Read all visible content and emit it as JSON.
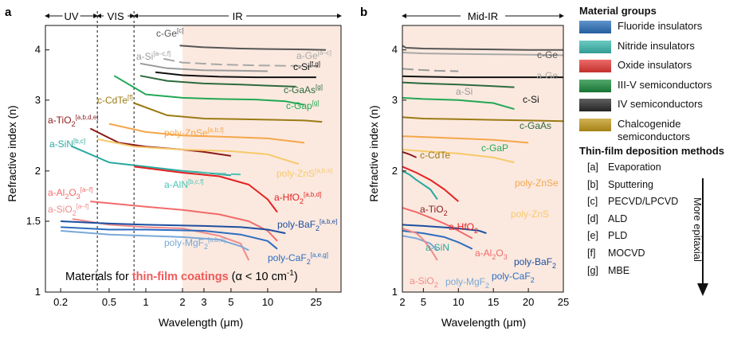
{
  "panel_a": {
    "label": "a",
    "regions": [
      "UV",
      "VIS",
      "IR"
    ],
    "annotation_prefix": "Materials for ",
    "annotation_highlight": "thin-film coatings",
    "annotation_suffix": " (α < 10 cm",
    "annotation_sup": "-1",
    "annotation_end": ")"
  },
  "panel_b": {
    "label": "b",
    "region": "Mid-IR"
  },
  "legend": {
    "groups_title": "Material groups",
    "groups": [
      {
        "label": "Fluoride insulators",
        "color": "#2a6fba"
      },
      {
        "label": "Nitride insulators",
        "color": "#3ab8ad"
      },
      {
        "label": "Oxide insulators",
        "color": "#e53935"
      },
      {
        "label": "III-V semiconductors",
        "color": "#1b8a3c"
      },
      {
        "label": "IV semiconductors",
        "color": "#2b2b2b"
      },
      {
        "label": "Chalcogenide semiconductors",
        "color": "#c2991c"
      }
    ],
    "methods_title": "Thin-film deposition methods",
    "methods": [
      {
        "tag": "[a]",
        "label": "Evaporation"
      },
      {
        "tag": "[b]",
        "label": "Sputtering"
      },
      {
        "tag": "[c]",
        "label": "PECVD/LPCVD"
      },
      {
        "tag": "[d]",
        "label": "ALD"
      },
      {
        "tag": "[e]",
        "label": "PLD"
      },
      {
        "tag": "[f]",
        "label": "MOCVD"
      },
      {
        "tag": "[g]",
        "label": "MBE"
      }
    ],
    "epitaxial_label": "More epitaxial"
  },
  "chart_data": [
    {
      "type": "line",
      "xlabel": "Wavelength (μm)",
      "ylabel": "Refractive index (n)",
      "x_scale": "log",
      "y_scale": "log",
      "xlim": [
        0.15,
        40
      ],
      "ylim": [
        1,
        4.6
      ],
      "xticks": [
        0.2,
        0.5,
        1,
        2,
        3,
        5,
        10,
        25
      ],
      "yticks": [
        1,
        1.5,
        2,
        3,
        4
      ],
      "boundaries_um": [
        0.4,
        0.8
      ],
      "ir_shade_from_um": 2,
      "series": [
        {
          "name": "c-Ge",
          "sup": "[c]",
          "color": "#555555",
          "x": [
            1.9,
            3,
            6,
            10,
            20,
            30
          ],
          "y": [
            4.1,
            4.06,
            4.03,
            4.02,
            4.01,
            4.0
          ]
        },
        {
          "name": "a-Ge",
          "sup": "[a–c]",
          "color": "#a8a8a8",
          "dashed": true,
          "x": [
            1.4,
            2,
            4,
            8,
            16,
            28
          ],
          "y": [
            3.8,
            3.72,
            3.68,
            3.66,
            3.65,
            3.64
          ]
        },
        {
          "name": "a-Si",
          "sup": "[a–c,f]",
          "color": "#9a9a9a",
          "x": [
            0.9,
            1.5,
            3,
            6,
            10
          ],
          "y": [
            3.7,
            3.6,
            3.56,
            3.55,
            3.54
          ]
        },
        {
          "name": "c-Si",
          "sup": "[f,g]",
          "color": "#111111",
          "x": [
            1.2,
            2,
            4,
            8,
            15,
            25
          ],
          "y": [
            3.52,
            3.46,
            3.43,
            3.42,
            3.42,
            3.42
          ]
        },
        {
          "name": "c-GaAs",
          "sup": "[g]",
          "color": "#2c6a3e",
          "x": [
            0.9,
            1.5,
            3,
            6,
            10,
            17
          ],
          "y": [
            3.45,
            3.35,
            3.3,
            3.28,
            3.26,
            3.24
          ]
        },
        {
          "name": "c-Gap",
          "sup": "[g]",
          "color": "#22a855",
          "x": [
            0.55,
            1,
            2,
            4,
            8,
            14,
            20
          ],
          "y": [
            3.45,
            3.1,
            3.04,
            3.02,
            3.01,
            2.98,
            2.92
          ]
        },
        {
          "name": "c-CdTe",
          "sup": "[f]",
          "color": "#9b7a14",
          "x": [
            0.8,
            1.5,
            3,
            6,
            12,
            20,
            28
          ],
          "y": [
            2.95,
            2.75,
            2.7,
            2.69,
            2.68,
            2.67,
            2.65
          ]
        },
        {
          "name": "a-TiO2",
          "sup": "[a,b,d,e]",
          "color": "#8b1a1a",
          "x": [
            0.35,
            0.6,
            1,
            2,
            3,
            5
          ],
          "y": [
            2.55,
            2.35,
            2.3,
            2.26,
            2.23,
            2.18
          ]
        },
        {
          "name": "poly-ZnSe",
          "sup": "[a,b,f]",
          "color": "#f5a64a",
          "x": [
            0.5,
            1,
            2,
            5,
            10,
            20
          ],
          "y": [
            2.62,
            2.5,
            2.45,
            2.43,
            2.41,
            2.35
          ]
        },
        {
          "name": "poly-ZnS",
          "sup": "[a,b,e]",
          "color": "#f7c96a",
          "x": [
            0.4,
            0.8,
            2,
            5,
            10,
            18
          ],
          "y": [
            2.4,
            2.3,
            2.26,
            2.24,
            2.2,
            2.08
          ]
        },
        {
          "name": "a-SiN",
          "sup": "[b,c]",
          "color": "#2aa8a0",
          "x": [
            0.25,
            0.5,
            1,
            2,
            3,
            5
          ],
          "y": [
            2.3,
            2.1,
            2.05,
            2.0,
            1.98,
            1.95
          ]
        },
        {
          "name": "a-AlN",
          "sup": "[b,c,f]",
          "color": "#4cc3b5",
          "dashed": true,
          "x": [
            1.5,
            2,
            4,
            6
          ],
          "y": [
            2.0,
            1.99,
            1.97,
            1.96
          ]
        },
        {
          "name": "a-HfO2",
          "sup": "[a,b,d]",
          "color": "#e52222",
          "x": [
            0.8,
            2,
            4,
            7,
            10,
            12
          ],
          "y": [
            2.05,
            1.98,
            1.94,
            1.85,
            1.7,
            1.58
          ]
        },
        {
          "name": "a-Al2O3",
          "sup": "[a–f]",
          "color": "#f26a6a",
          "x": [
            0.35,
            1,
            2,
            4,
            7,
            10,
            12
          ],
          "y": [
            1.68,
            1.63,
            1.6,
            1.56,
            1.5,
            1.42,
            1.34
          ]
        },
        {
          "name": "a-SiO2",
          "sup": "[a–f]",
          "color": "#f08a8a",
          "x": [
            0.25,
            0.5,
            1,
            2,
            4,
            6,
            7
          ],
          "y": [
            1.52,
            1.47,
            1.45,
            1.44,
            1.38,
            1.32,
            1.2
          ]
        },
        {
          "name": "poly-BaF2",
          "sup": "[a,b,e]",
          "color": "#1d4fa0",
          "x": [
            0.2,
            0.5,
            1,
            3,
            6,
            10,
            14
          ],
          "y": [
            1.5,
            1.48,
            1.47,
            1.46,
            1.45,
            1.43,
            1.4
          ]
        },
        {
          "name": "poly-MgF2",
          "sup": "[a,b,e]",
          "color": "#79a8d8",
          "x": [
            0.2,
            0.5,
            1,
            2,
            4,
            6,
            7
          ],
          "y": [
            1.42,
            1.39,
            1.38,
            1.37,
            1.35,
            1.3,
            1.27
          ]
        },
        {
          "name": "poly-CaF2",
          "sup": "[a,e,g]",
          "color": "#2d6cc0",
          "x": [
            0.2,
            0.5,
            1,
            3,
            6,
            10,
            12
          ],
          "y": [
            1.45,
            1.43,
            1.43,
            1.42,
            1.39,
            1.34,
            1.28
          ]
        }
      ]
    },
    {
      "type": "line",
      "xlabel": "Wavelength (μm)",
      "ylabel": "Refractive index (n)",
      "x_scale": "linear",
      "y_scale": "log",
      "xlim": [
        2,
        25
      ],
      "ylim": [
        1,
        4.6
      ],
      "xticks": [
        2,
        5,
        10,
        15,
        20,
        25
      ],
      "yticks": [
        1,
        2,
        3,
        4
      ],
      "series": [
        {
          "name": "c-Ge",
          "color": "#555555",
          "x": [
            2,
            2.5,
            5,
            10,
            15,
            20,
            25
          ],
          "y": [
            4.1,
            4.05,
            4.03,
            4.02,
            4.01,
            4.0,
            4.0
          ]
        },
        {
          "name": "a-Ge",
          "color": "#a8a8a8",
          "x": [
            2,
            5,
            10,
            15,
            20,
            25
          ],
          "y": [
            3.94,
            3.92,
            3.91,
            3.9,
            3.89,
            3.88
          ]
        },
        {
          "name": "a-Si",
          "color": "#9a9a9a",
          "dashed": true,
          "x": [
            2,
            4,
            7,
            10
          ],
          "y": [
            3.59,
            3.57,
            3.55,
            3.54
          ]
        },
        {
          "name": "c-Si",
          "color": "#111111",
          "x": [
            2,
            5,
            10,
            15,
            20,
            25
          ],
          "y": [
            3.44,
            3.43,
            3.42,
            3.42,
            3.42,
            3.42
          ]
        },
        {
          "name": "c-GaAs",
          "color": "#2c6a3e",
          "x": [
            2,
            5,
            10,
            15,
            18
          ],
          "y": [
            3.32,
            3.3,
            3.28,
            3.25,
            3.23
          ]
        },
        {
          "name": "c-GaP",
          "color": "#22a855",
          "x": [
            2,
            5,
            10,
            15,
            18
          ],
          "y": [
            3.04,
            3.02,
            3.0,
            2.95,
            2.85
          ]
        },
        {
          "name": "c-CdTe",
          "color": "#9b7a14",
          "x": [
            2,
            5,
            10,
            15,
            20,
            25
          ],
          "y": [
            2.72,
            2.7,
            2.69,
            2.68,
            2.67,
            2.66
          ]
        },
        {
          "name": "poly-ZnSe",
          "color": "#f5a64a",
          "x": [
            2,
            5,
            10,
            15,
            20
          ],
          "y": [
            2.44,
            2.43,
            2.41,
            2.39,
            2.35
          ]
        },
        {
          "name": "poly-ZnS",
          "color": "#f7c96a",
          "x": [
            2,
            5,
            10,
            15,
            18
          ],
          "y": [
            2.26,
            2.24,
            2.21,
            2.16,
            2.1
          ]
        },
        {
          "name": "a-TiO2",
          "color": "#8b1a1a",
          "x": [
            2,
            3,
            4
          ],
          "y": [
            2.23,
            2.2,
            2.16
          ]
        },
        {
          "name": "a-HfO2",
          "color": "#e52222",
          "x": [
            2,
            4,
            6,
            8,
            10
          ],
          "y": [
            2.05,
            1.98,
            1.9,
            1.8,
            1.68
          ]
        },
        {
          "name": "a-SiN",
          "color": "#2aa8a0",
          "x": [
            2,
            3,
            4,
            6,
            7
          ],
          "y": [
            2.0,
            1.96,
            1.9,
            1.8,
            1.7
          ]
        },
        {
          "name": "a-Al2O3",
          "color": "#f26a6a",
          "x": [
            2,
            4,
            6,
            8,
            10,
            12
          ],
          "y": [
            1.62,
            1.58,
            1.53,
            1.48,
            1.42,
            1.36
          ]
        },
        {
          "name": "poly-BaF2",
          "color": "#1d4fa0",
          "x": [
            2,
            5,
            10,
            13,
            14
          ],
          "y": [
            1.47,
            1.46,
            1.44,
            1.42,
            1.4
          ]
        },
        {
          "name": "poly-CaF2",
          "color": "#2d6cc0",
          "x": [
            2,
            5,
            8,
            10,
            12
          ],
          "y": [
            1.42,
            1.4,
            1.37,
            1.33,
            1.28
          ]
        },
        {
          "name": "poly-MgF2",
          "color": "#79a8d8",
          "x": [
            2,
            4,
            6,
            7
          ],
          "y": [
            1.38,
            1.36,
            1.32,
            1.27
          ]
        },
        {
          "name": "a-SiO2",
          "color": "#f08a8a",
          "x": [
            2,
            4,
            5,
            6,
            7
          ],
          "y": [
            1.44,
            1.4,
            1.35,
            1.28,
            1.2
          ]
        }
      ]
    }
  ]
}
